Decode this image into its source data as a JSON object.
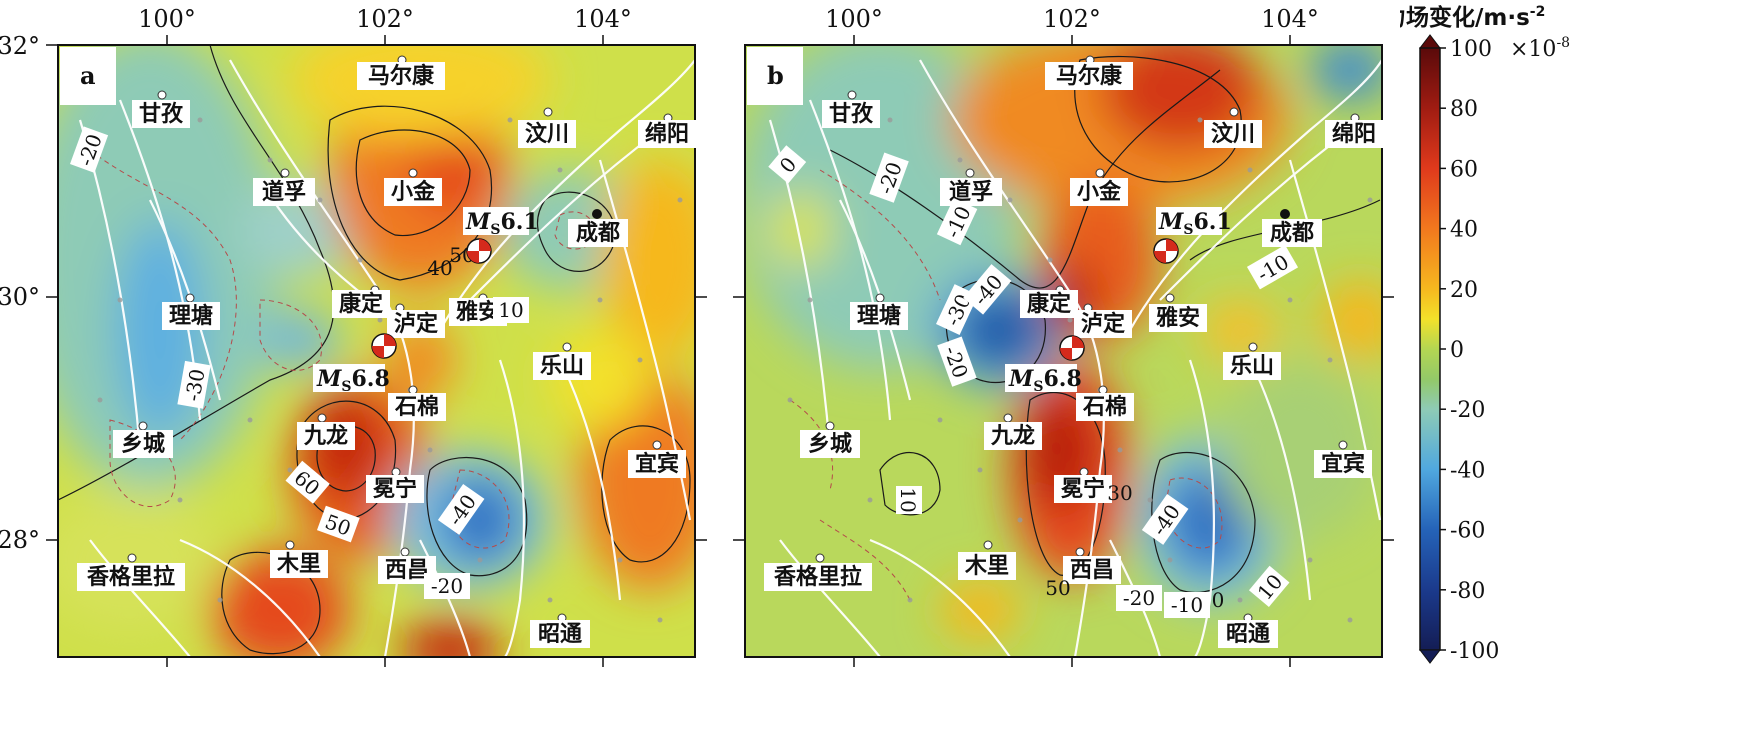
{
  "panels": [
    {
      "letter": "a",
      "x_ticks": [
        "100°",
        "102°",
        "104°"
      ],
      "y_ticks": [
        "32°",
        "30°",
        "28°"
      ],
      "cities": [
        "甘孜",
        "马尔康",
        "汶川",
        "绵阳",
        "道孚",
        "小金",
        "成都",
        "理塘",
        "康定",
        "泸定",
        "雅安",
        "乐山",
        "石棉",
        "乡城",
        "九龙",
        "冕宁",
        "宜宾",
        "木里",
        "西昌",
        "香格里拉",
        "昭通"
      ],
      "contour_labels": [
        "-20",
        "-30",
        "40",
        "50",
        "10",
        "60",
        "50",
        "-40",
        "-20"
      ],
      "quakes": [
        {
          "prefix": "M",
          "sub": "S",
          "mag": "6.1"
        },
        {
          "prefix": "M",
          "sub": "S",
          "mag": "6.8"
        }
      ]
    },
    {
      "letter": "b",
      "x_ticks": [
        "100°",
        "102°",
        "104°"
      ],
      "cities": [
        "甘孜",
        "马尔康",
        "汶川",
        "绵阳",
        "道孚",
        "小金",
        "成都",
        "理塘",
        "康定",
        "泸定",
        "雅安",
        "乐山",
        "石棉",
        "乡城",
        "九龙",
        "冕宁",
        "宜宾",
        "木里",
        "西昌",
        "香格里拉",
        "昭通"
      ],
      "contour_labels": [
        "0",
        "-20",
        "-10",
        "-30",
        "-40",
        "-20",
        "-10",
        "10",
        "30",
        "-40",
        "-20",
        "-10",
        "0",
        "10",
        "50"
      ],
      "quakes": [
        {
          "prefix": "M",
          "sub": "S",
          "mag": "6.1"
        },
        {
          "prefix": "M",
          "sub": "S",
          "mag": "6.8"
        }
      ]
    }
  ],
  "colorbar": {
    "title": "重力场变化/m·s",
    "title_exp": "-2",
    "top_unit": "×10",
    "top_unit_exp": "-8",
    "ticks": [
      "100",
      "80",
      "60",
      "40",
      "20",
      "0",
      "-20",
      "-40",
      "-60",
      "-80",
      "-100"
    ],
    "colors": [
      "#5a0a0a",
      "#a01c12",
      "#e03a1c",
      "#f2781e",
      "#f6b81f",
      "#f3e12a",
      "#cfe04a",
      "#93c968",
      "#8ecbb6",
      "#7cc2de",
      "#3f9ad8",
      "#2563b8",
      "#1b3a8c",
      "#141d55"
    ]
  }
}
